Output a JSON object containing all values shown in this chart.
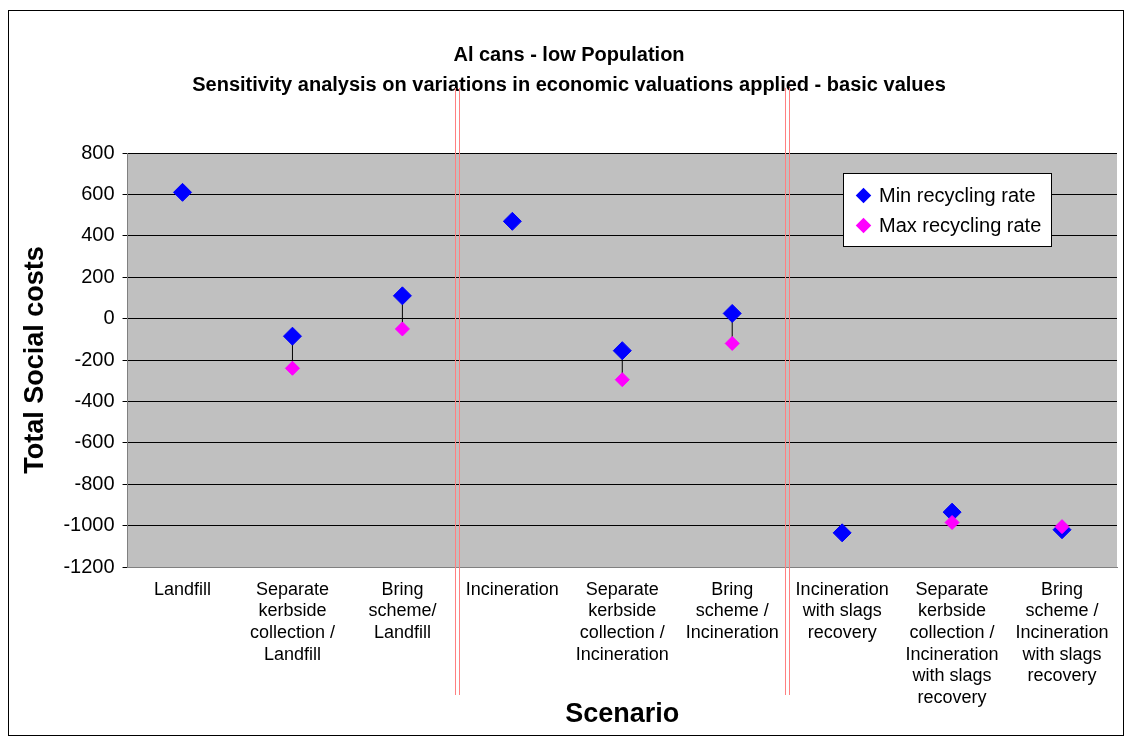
{
  "chart_data": {
    "type": "scatter",
    "title": "Al cans - low Population",
    "subtitle": "Sensitivity analysis on variations in economic valuations applied - basic values",
    "xlabel": "Scenario",
    "ylabel": "Total Social costs",
    "categories": [
      "Landfill",
      "Separate kerbside collection / Landfill",
      "Bring scheme/ Landfill",
      "Incineration",
      "Separate kerbside collection / Incineration",
      "Bring scheme / Incineration",
      "Incineration with slags recovery",
      "Separate kerbside collection / Incineration with slags recovery",
      "Bring scheme / Incineration with slags recovery"
    ],
    "ylim": [
      -1200,
      800
    ],
    "yticks": [
      -1200,
      -1000,
      -800,
      -600,
      -400,
      -200,
      0,
      200,
      400,
      600,
      800
    ],
    "series": [
      {
        "name": "Min recycling rate",
        "color": "#0000ff",
        "values": [
          610,
          -85,
          110,
          470,
          -155,
          25,
          -1035,
          -935,
          -1020
        ]
      },
      {
        "name": "Max recycling rate",
        "color": "#ff00ff",
        "values": [
          null,
          -240,
          -50,
          null,
          -295,
          -120,
          null,
          -985,
          -1005
        ]
      }
    ],
    "grid": "y",
    "legend": "top right",
    "marker": "diamond"
  }
}
